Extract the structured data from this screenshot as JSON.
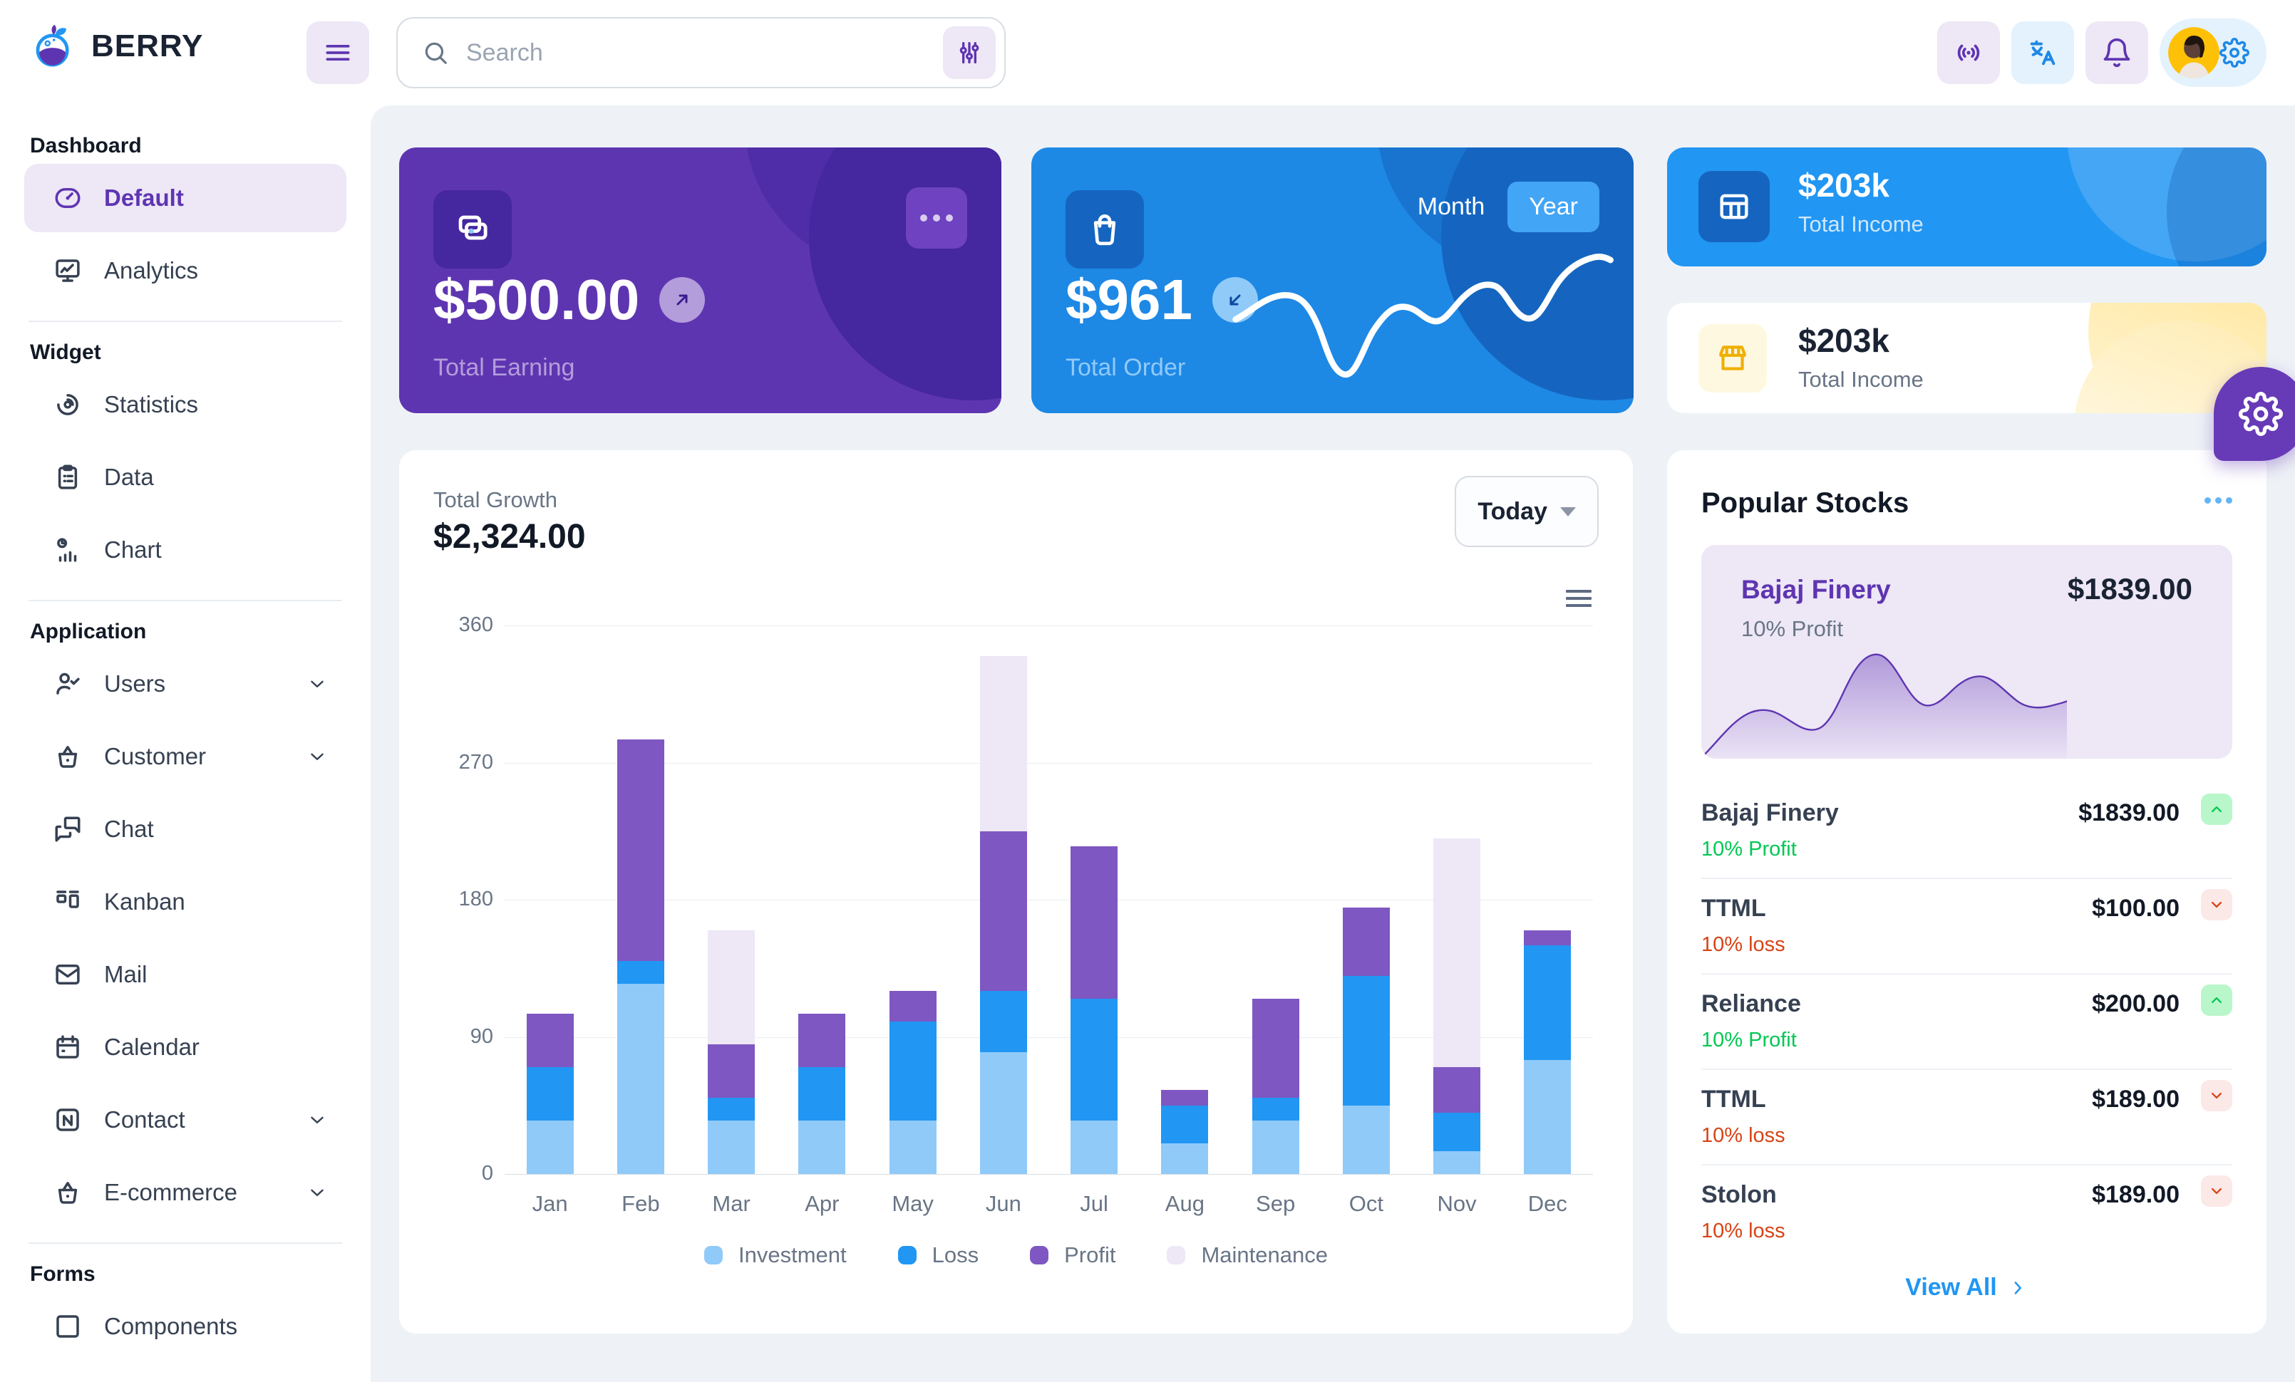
{
  "brand": {
    "name": "BERRY"
  },
  "header": {
    "search": {
      "placeholder": "Search"
    }
  },
  "sidebar": {
    "sections": [
      {
        "title": "Dashboard",
        "items": [
          {
            "label": "Default",
            "icon": "dashboard-icon",
            "active": true
          },
          {
            "label": "Analytics",
            "icon": "analytics-icon"
          }
        ]
      },
      {
        "title": "Widget",
        "items": [
          {
            "label": "Statistics",
            "icon": "chart-arcs-icon"
          },
          {
            "label": "Data",
            "icon": "clipboard-icon"
          },
          {
            "label": "Chart",
            "icon": "chart-infographic-icon"
          }
        ]
      },
      {
        "title": "Application",
        "items": [
          {
            "label": "Users",
            "icon": "user-check-icon",
            "expandable": true
          },
          {
            "label": "Customer",
            "icon": "basket-icon",
            "expandable": true
          },
          {
            "label": "Chat",
            "icon": "messages-icon"
          },
          {
            "label": "Kanban",
            "icon": "kanban-icon"
          },
          {
            "label": "Mail",
            "icon": "mail-icon"
          },
          {
            "label": "Calendar",
            "icon": "calendar-icon"
          },
          {
            "label": "Contact",
            "icon": "nfc-icon",
            "expandable": true
          },
          {
            "label": "E-commerce",
            "icon": "basket-icon",
            "expandable": true
          }
        ]
      },
      {
        "title": "Forms",
        "items": [
          {
            "label": "Components",
            "icon": "box-icon",
            "partial": true
          }
        ]
      }
    ]
  },
  "cards": {
    "earning": {
      "amount": "$500.00",
      "label": "Total Earning"
    },
    "order": {
      "amount": "$961",
      "label": "Total Order",
      "toggle": {
        "month": "Month",
        "year": "Year",
        "selected": "Year"
      }
    },
    "income_dark": {
      "amount": "$203k",
      "label": "Total Income"
    },
    "income_light": {
      "amount": "$203k",
      "label": "Total Income"
    }
  },
  "growth": {
    "title": "Total Growth",
    "amount": "$2,324.00",
    "period": "Today"
  },
  "stocks": {
    "title": "Popular Stocks",
    "featured": {
      "name": "Bajaj Finery",
      "change": "10% Profit",
      "price": "$1839.00"
    },
    "items": [
      {
        "name": "Bajaj Finery",
        "change": "10% Profit",
        "price": "$1839.00",
        "direction": "up"
      },
      {
        "name": "TTML",
        "change": "10% loss",
        "price": "$100.00",
        "direction": "down"
      },
      {
        "name": "Reliance",
        "change": "10% Profit",
        "price": "$200.00",
        "direction": "up"
      },
      {
        "name": "TTML",
        "change": "10% loss",
        "price": "$189.00",
        "direction": "down"
      },
      {
        "name": "Stolon",
        "change": "10% loss",
        "price": "$189.00",
        "direction": "down"
      }
    ],
    "view_all": "View All"
  },
  "colors": {
    "purple_dark": "#5e35b1",
    "purple_deep": "#4527a0",
    "purple_light_bg": "#ede7f6",
    "blue": "#2196f3",
    "blue_dark": "#1e88e5",
    "blue_deep": "#1565c0",
    "blue_light": "#90caf9",
    "green": "#00c853",
    "red": "#d84315",
    "yellow": "#ffc107",
    "bg": "#eef2f6"
  },
  "chart_data": [
    {
      "type": "bar",
      "stacked": true,
      "title": "Total Growth",
      "categories": [
        "Jan",
        "Feb",
        "Mar",
        "Apr",
        "May",
        "Jun",
        "Jul",
        "Aug",
        "Sep",
        "Oct",
        "Nov",
        "Dec"
      ],
      "series": [
        {
          "name": "Investment",
          "color": "#90caf9",
          "values": [
            35,
            125,
            35,
            35,
            35,
            80,
            35,
            20,
            35,
            45,
            15,
            75
          ]
        },
        {
          "name": "Loss",
          "color": "#2196f3",
          "values": [
            35,
            15,
            15,
            35,
            65,
            40,
            80,
            25,
            15,
            85,
            25,
            75
          ]
        },
        {
          "name": "Profit",
          "color": "#7e57c2",
          "values": [
            35,
            145,
            35,
            35,
            20,
            105,
            100,
            10,
            65,
            45,
            30,
            10
          ]
        },
        {
          "name": "Maintenance",
          "color": "#ede7f6",
          "values": [
            0,
            0,
            75,
            0,
            0,
            115,
            0,
            0,
            0,
            0,
            150,
            0
          ]
        }
      ],
      "xlabel": "",
      "ylabel": "",
      "ylim": [
        0,
        360
      ],
      "yticks": [
        0,
        90,
        180,
        270,
        360
      ],
      "grid": true,
      "legend_position": "bottom"
    },
    {
      "type": "line",
      "title": "Total Order sparkline (decorative, unlabeled)",
      "x": [
        1,
        2,
        3,
        4,
        5,
        6,
        7,
        8,
        9,
        10,
        11,
        12
      ],
      "values": [
        45,
        55,
        30,
        12,
        42,
        50,
        46,
        60,
        72,
        55,
        80,
        95
      ],
      "ylim": [
        0,
        100
      ],
      "grid": false,
      "legend_position": "none"
    },
    {
      "type": "area",
      "title": "Bajaj Finery price trend (decorative, unlabeled)",
      "x": [
        1,
        2,
        3,
        4,
        5,
        6,
        7,
        8,
        9,
        10,
        11
      ],
      "values": [
        2,
        35,
        30,
        24,
        78,
        55,
        42,
        62,
        58,
        40,
        44
      ],
      "ylim": [
        0,
        100
      ],
      "grid": false,
      "legend_position": "none"
    }
  ]
}
